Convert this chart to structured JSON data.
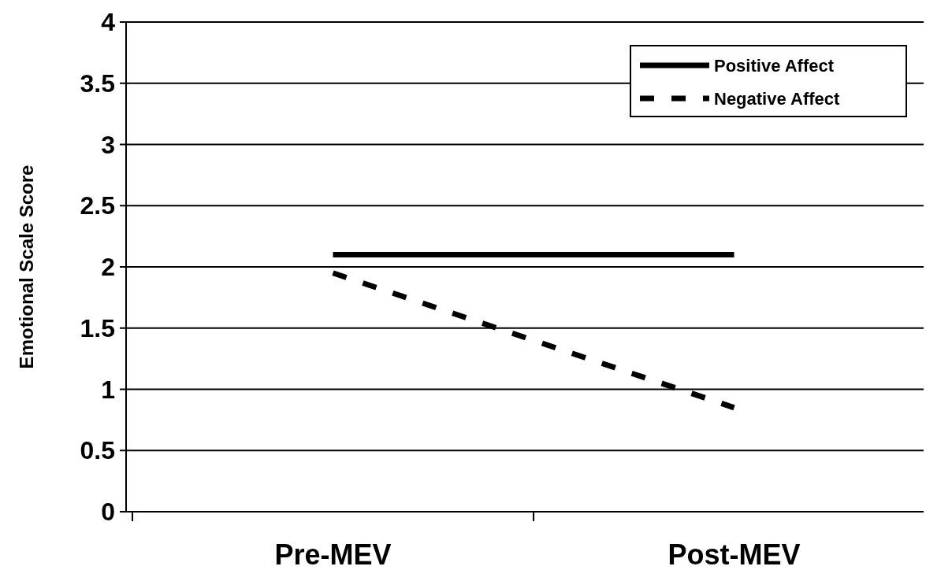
{
  "chart_data": {
    "type": "line",
    "ylabel": "Emotional Scale Score",
    "categories": [
      "Pre-MEV",
      "Post-MEV"
    ],
    "series": [
      {
        "name": "Positive Affect",
        "color": "#000000",
        "line_style": "solid",
        "values": [
          2.1,
          2.1
        ]
      },
      {
        "name": "Negative Affect",
        "color": "#000000",
        "line_style": "dashed",
        "values": [
          1.95,
          0.85
        ]
      }
    ],
    "ylim": [
      0,
      4
    ],
    "yticks": [
      0,
      0.5,
      1,
      1.5,
      2,
      2.5,
      3,
      3.5,
      4
    ],
    "grid": "y",
    "legend": "top right",
    "marker": "none"
  }
}
